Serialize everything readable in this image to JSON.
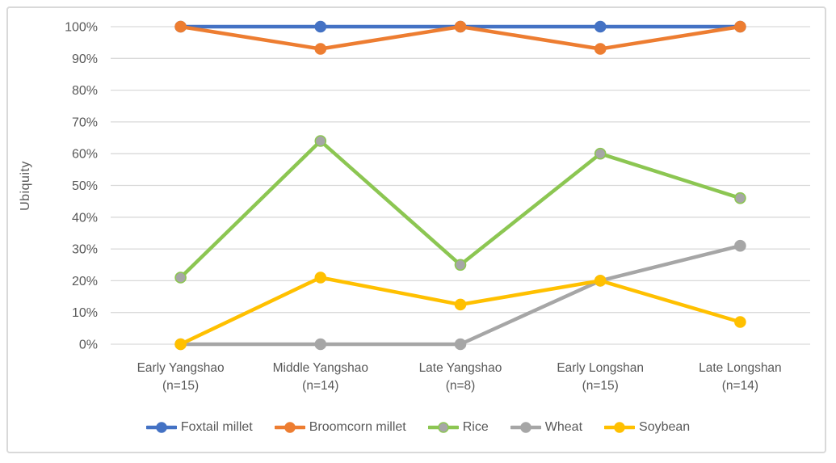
{
  "figure": {
    "background_color": "#FFFFFF",
    "frame_border_color": "#D9D9D9",
    "grid_color": "#D9D9D9",
    "text_color": "#595959"
  },
  "chart_data": {
    "type": "line",
    "title": "",
    "xlabel": "",
    "ylabel": "Ubiquity",
    "ylim": [
      0,
      100
    ],
    "ytick_step": 10,
    "ytick_suffix": "%",
    "grid": true,
    "legend_position": "bottom",
    "categories": [
      {
        "line1": "Early Yangshao",
        "line2": "(n=15)"
      },
      {
        "line1": "Middle Yangshao",
        "line2": "(n=14)"
      },
      {
        "line1": "Late Yangshao",
        "line2": "(n=8)"
      },
      {
        "line1": "Early Longshan",
        "line2": "(n=15)"
      },
      {
        "line1": "Late Longshan",
        "line2": "(n=14)"
      }
    ],
    "series": [
      {
        "name": "Foxtail millet",
        "color": "#4472C4",
        "marker_fill": "#4472C4",
        "values": [
          100,
          100,
          100,
          100,
          100
        ]
      },
      {
        "name": "Broomcorn millet",
        "color": "#ED7D31",
        "marker_fill": "#ED7D31",
        "values": [
          100,
          93,
          100,
          93,
          100
        ]
      },
      {
        "name": "Rice",
        "color": "#8CC652",
        "marker_fill": "#A6A6A6",
        "values": [
          21,
          64,
          25,
          60,
          46
        ]
      },
      {
        "name": "Wheat",
        "color": "#A6A6A6",
        "marker_fill": "#A6A6A6",
        "values": [
          0,
          0,
          0,
          20,
          31
        ]
      },
      {
        "name": "Soybean",
        "color": "#FFC000",
        "marker_fill": "#FFC000",
        "values": [
          0,
          21,
          12.5,
          20,
          7
        ]
      }
    ]
  }
}
